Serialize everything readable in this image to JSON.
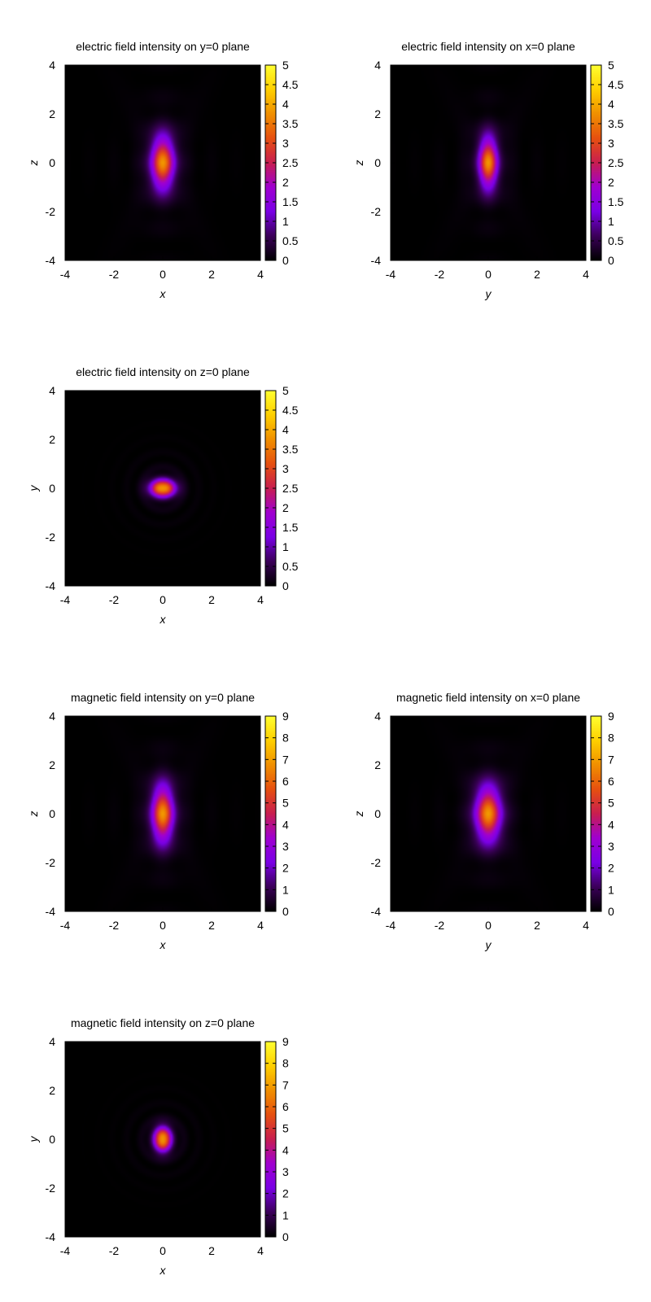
{
  "chart_data": [
    {
      "type": "heatmap",
      "title": "electric field intensity on y=0 plane",
      "xlabel": "x",
      "ylabel": "z",
      "xlim": [
        -4,
        4
      ],
      "ylim": [
        -4,
        4
      ],
      "xticks": [
        "-4",
        "-2",
        "0",
        "2",
        "4"
      ],
      "yticks": [
        "-4",
        "-2",
        "0",
        "2",
        "4"
      ],
      "colorbar": {
        "range": [
          0,
          5
        ],
        "ticks": [
          "0",
          "0.5",
          "1",
          "1.5",
          "2",
          "2.5",
          "3",
          "3.5",
          "4",
          "4.5",
          "5"
        ]
      },
      "peak": {
        "x": 0,
        "y": 0,
        "value": 3.2
      },
      "spread": {
        "x": 0.32,
        "y": 0.75
      },
      "pattern": "axial-lobes"
    },
    {
      "type": "heatmap",
      "title": "electric field intensity on x=0 plane",
      "xlabel": "y",
      "ylabel": "z",
      "xlim": [
        -4,
        4
      ],
      "ylim": [
        -4,
        4
      ],
      "xticks": [
        "-4",
        "-2",
        "0",
        "2",
        "4"
      ],
      "yticks": [
        "-4",
        "-2",
        "0",
        "2",
        "4"
      ],
      "colorbar": {
        "range": [
          0,
          5
        ],
        "ticks": [
          "0",
          "0.5",
          "1",
          "1.5",
          "2",
          "2.5",
          "3",
          "3.5",
          "4",
          "4.5",
          "5"
        ]
      },
      "peak": {
        "x": 0,
        "y": 0,
        "value": 3.2
      },
      "spread": {
        "x": 0.26,
        "y": 0.72
      },
      "pattern": "axial-lobes"
    },
    {
      "type": "heatmap",
      "title": "electric field intensity on z=0 plane",
      "xlabel": "x",
      "ylabel": "y",
      "xlim": [
        -4,
        4
      ],
      "ylim": [
        -4,
        4
      ],
      "xticks": [
        "-4",
        "-2",
        "0",
        "2",
        "4"
      ],
      "yticks": [
        "-4",
        "-2",
        "0",
        "2",
        "4"
      ],
      "colorbar": {
        "range": [
          0,
          5
        ],
        "ticks": [
          "0",
          "0.5",
          "1",
          "1.5",
          "2",
          "2.5",
          "3",
          "3.5",
          "4",
          "4.5",
          "5"
        ]
      },
      "peak": {
        "x": 0,
        "y": 0,
        "value": 3.8
      },
      "spread": {
        "x": 0.36,
        "y": 0.24
      },
      "pattern": "rings"
    },
    {
      "type": "heatmap",
      "title": "magnetic field intensity on y=0 plane",
      "xlabel": "x",
      "ylabel": "z",
      "xlim": [
        -4,
        4
      ],
      "ylim": [
        -4,
        4
      ],
      "xticks": [
        "-4",
        "-2",
        "0",
        "2",
        "4"
      ],
      "yticks": [
        "-4",
        "-2",
        "0",
        "2",
        "4"
      ],
      "colorbar": {
        "range": [
          0,
          9
        ],
        "ticks": [
          "0",
          "1",
          "2",
          "3",
          "4",
          "5",
          "6",
          "7",
          "8",
          "9"
        ]
      },
      "peak": {
        "x": 0,
        "y": 0,
        "value": 5.8
      },
      "spread": {
        "x": 0.3,
        "y": 0.8
      },
      "pattern": "axial-lobes"
    },
    {
      "type": "heatmap",
      "title": "magnetic field intensity on x=0 plane",
      "xlabel": "y",
      "ylabel": "z",
      "xlim": [
        -4,
        4
      ],
      "ylim": [
        -4,
        4
      ],
      "xticks": [
        "-4",
        "-2",
        "0",
        "2",
        "4"
      ],
      "yticks": [
        "-4",
        "-2",
        "0",
        "2",
        "4"
      ],
      "colorbar": {
        "range": [
          0,
          9
        ],
        "ticks": [
          "0",
          "1",
          "2",
          "3",
          "4",
          "5",
          "6",
          "7",
          "8",
          "9"
        ]
      },
      "peak": {
        "x": 0,
        "y": 0,
        "value": 5.8
      },
      "spread": {
        "x": 0.36,
        "y": 0.78
      },
      "pattern": "axial-lobes"
    },
    {
      "type": "heatmap",
      "title": "magnetic field intensity on z=0 plane",
      "xlabel": "x",
      "ylabel": "y",
      "xlim": [
        -4,
        4
      ],
      "ylim": [
        -4,
        4
      ],
      "xticks": [
        "-4",
        "-2",
        "0",
        "2",
        "4"
      ],
      "yticks": [
        "-4",
        "-2",
        "0",
        "2",
        "4"
      ],
      "colorbar": {
        "range": [
          0,
          9
        ],
        "ticks": [
          "0",
          "1",
          "2",
          "3",
          "4",
          "5",
          "6",
          "7",
          "8",
          "9"
        ]
      },
      "peak": {
        "x": 0,
        "y": 0,
        "value": 6.8
      },
      "spread": {
        "x": 0.24,
        "y": 0.34
      },
      "pattern": "rings"
    }
  ],
  "colors": {
    "colormap": [
      "#000000",
      "#3b0059",
      "#7a00e6",
      "#a000d0",
      "#c81e50",
      "#e65010",
      "#f09000",
      "#ffd000",
      "#ffff30"
    ],
    "frame": "#000000",
    "background": "#ffffff"
  }
}
